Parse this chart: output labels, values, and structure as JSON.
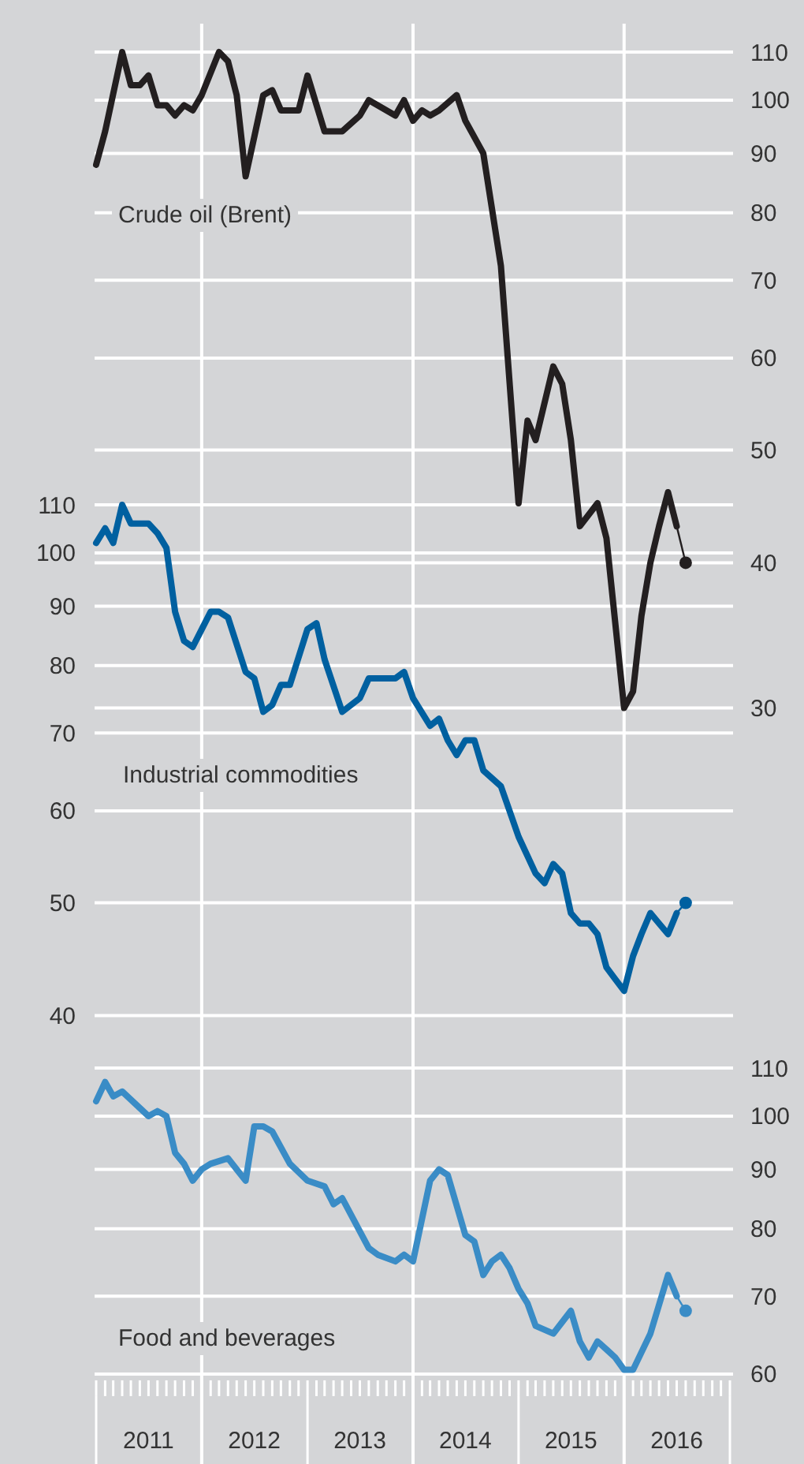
{
  "chart_data": [
    {
      "type": "line",
      "log": true,
      "grid": "y",
      "tick_labels": "y",
      "xlim": [
        "2011-01",
        "2017-01"
      ],
      "ylim": [
        30,
        110
      ],
      "yticks": [
        30,
        40,
        50,
        60,
        70,
        80,
        90,
        100,
        110
      ],
      "ref_lines": [
        {
          "axis": "x",
          "value": "2012-01",
          "color": "#ffffff"
        },
        {
          "axis": "x",
          "value": "2014-01",
          "color": "#ffffff"
        },
        {
          "axis": "x",
          "value": "2016-01",
          "color": "#ffffff"
        }
      ],
      "series": [
        {
          "type": "line",
          "name": "Crude oil (Brent)",
          "color": "#231f20",
          "x": [
            "2011-01",
            "2011-02",
            "2011-04",
            "2011-05",
            "2011-06",
            "2011-07",
            "2011-08",
            "2011-09",
            "2011-10",
            "2011-11",
            "2011-12",
            "2012-01",
            "2012-03",
            "2012-04",
            "2012-05",
            "2012-06",
            "2012-07",
            "2012-08",
            "2012-09",
            "2012-10",
            "2012-12",
            "2013-01",
            "2013-03",
            "2013-05",
            "2013-07",
            "2013-08",
            "2013-11",
            "2013-12",
            "2014-01",
            "2014-02",
            "2014-03",
            "2014-04",
            "2014-06",
            "2014-07",
            "2014-09",
            "2014-11",
            "2015-01",
            "2015-02",
            "2015-03",
            "2015-05",
            "2015-06",
            "2015-07",
            "2015-08",
            "2015-10",
            "2015-11",
            "2016-01",
            "2016-02",
            "2016-03",
            "2016-04",
            "2016-05",
            "2016-06",
            "2016-07"
          ],
          "values": [
            88,
            94,
            110,
            103,
            103,
            105,
            99,
            99,
            97,
            99,
            98,
            101,
            110,
            108,
            101,
            86,
            93,
            101,
            102,
            98,
            98,
            105,
            94,
            94,
            97,
            100,
            97,
            100,
            96,
            98,
            97,
            98,
            101,
            96,
            90,
            72,
            45,
            53,
            51,
            59,
            57,
            51,
            43,
            45,
            42,
            30,
            31,
            36,
            40,
            43,
            46,
            43
          ]
        },
        {
          "type": "scatter",
          "marker": "circle",
          "color": "#231f20",
          "x": [
            "2016-08"
          ],
          "values": [
            40
          ]
        }
      ]
    },
    {
      "type": "line",
      "log": true,
      "grid": "y",
      "tick_labels": "y",
      "xlim": [
        "2011-01",
        "2017-01"
      ],
      "ylim": [
        40,
        110
      ],
      "yticks": [
        40,
        50,
        60,
        70,
        80,
        90,
        100,
        110
      ],
      "ref_lines": [
        {
          "axis": "x",
          "value": "2012-01",
          "color": "#ffffff"
        },
        {
          "axis": "x",
          "value": "2014-01",
          "color": "#ffffff"
        },
        {
          "axis": "x",
          "value": "2016-01",
          "color": "#ffffff"
        }
      ],
      "series": [
        {
          "type": "line",
          "name": "Industrial commodities",
          "color": "#0060a0",
          "x": [
            "2011-01",
            "2011-02",
            "2011-03",
            "2011-04",
            "2011-05",
            "2011-07",
            "2011-08",
            "2011-09",
            "2011-10",
            "2011-11",
            "2011-12",
            "2012-02",
            "2012-03",
            "2012-04",
            "2012-06",
            "2012-07",
            "2012-08",
            "2012-09",
            "2012-10",
            "2012-11",
            "2013-01",
            "2013-02",
            "2013-03",
            "2013-05",
            "2013-07",
            "2013-08",
            "2013-09",
            "2013-11",
            "2013-12",
            "2014-01",
            "2014-03",
            "2014-04",
            "2014-05",
            "2014-06",
            "2014-07",
            "2014-08",
            "2014-09",
            "2014-11",
            "2015-01",
            "2015-03",
            "2015-04",
            "2015-05",
            "2015-06",
            "2015-07",
            "2015-08",
            "2015-09",
            "2015-10",
            "2015-11",
            "2015-12",
            "2016-01",
            "2016-02",
            "2016-03",
            "2016-04",
            "2016-05",
            "2016-06",
            "2016-07"
          ],
          "values": [
            102,
            105,
            102,
            110,
            106,
            106,
            104,
            101,
            89,
            84,
            83,
            89,
            89,
            88,
            79,
            78,
            73,
            74,
            77,
            77,
            86,
            87,
            81,
            73,
            75,
            78,
            78,
            78,
            79,
            75,
            71,
            72,
            69,
            67,
            69,
            69,
            65,
            63,
            57,
            53,
            52,
            54,
            53,
            49,
            48,
            48,
            47,
            44,
            43,
            42,
            45,
            47,
            49,
            48,
            47,
            49
          ]
        },
        {
          "type": "scatter",
          "marker": "circle",
          "color": "#0060a0",
          "x": [
            "2016-08"
          ],
          "values": [
            50
          ]
        }
      ]
    },
    {
      "type": "line",
      "log": true,
      "grid": "y",
      "xlim": [
        "2011-01",
        "2017-01"
      ],
      "ylim": [
        60,
        110
      ],
      "yticks": [
        60,
        70,
        80,
        90,
        100,
        110
      ],
      "xticks": [
        {
          "value": "2011-01",
          "label": null
        },
        {
          "value": "2011-02",
          "label": null
        },
        {
          "value": "2011-03",
          "label": null
        },
        {
          "value": "2011-04",
          "label": null
        },
        {
          "value": "2011-05",
          "label": null
        },
        {
          "value": "2011-06",
          "label": null
        },
        {
          "value": "2011-07",
          "label": "2011"
        },
        {
          "value": "2011-08",
          "label": null
        },
        {
          "value": "2011-09",
          "label": null
        },
        {
          "value": "2011-10",
          "label": null
        },
        {
          "value": "2011-11",
          "label": null
        },
        {
          "value": "2011-12",
          "label": null
        },
        {
          "value": "2012-01",
          "label": null
        },
        {
          "value": "2012-02",
          "label": null
        },
        {
          "value": "2012-03",
          "label": null
        },
        {
          "value": "2012-04",
          "label": null
        },
        {
          "value": "2012-05",
          "label": null
        },
        {
          "value": "2012-06",
          "label": null
        },
        {
          "value": "2012-07",
          "label": "2012"
        },
        {
          "value": "2012-08",
          "label": null
        },
        {
          "value": "2012-09",
          "label": null
        },
        {
          "value": "2012-10",
          "label": null
        },
        {
          "value": "2012-11",
          "label": null
        },
        {
          "value": "2012-12",
          "label": null
        },
        {
          "value": "2013-01",
          "label": null
        },
        {
          "value": "2013-02",
          "label": null
        },
        {
          "value": "2013-03",
          "label": null
        },
        {
          "value": "2013-04",
          "label": null
        },
        {
          "value": "2013-05",
          "label": null
        },
        {
          "value": "2013-06",
          "label": null
        },
        {
          "value": "2013-07",
          "label": "2013"
        },
        {
          "value": "2013-08",
          "label": null
        },
        {
          "value": "2013-09",
          "label": null
        },
        {
          "value": "2013-10",
          "label": null
        },
        {
          "value": "2013-11",
          "label": null
        },
        {
          "value": "2013-12",
          "label": null
        },
        {
          "value": "2014-01",
          "label": null
        },
        {
          "value": "2014-02",
          "label": null
        },
        {
          "value": "2014-03",
          "label": null
        },
        {
          "value": "2014-04",
          "label": null
        },
        {
          "value": "2014-05",
          "label": null
        },
        {
          "value": "2014-06",
          "label": null
        },
        {
          "value": "2014-07",
          "label": "2014"
        },
        {
          "value": "2014-08",
          "label": null
        },
        {
          "value": "2014-09",
          "label": null
        },
        {
          "value": "2014-10",
          "label": null
        },
        {
          "value": "2014-11",
          "label": null
        },
        {
          "value": "2014-12",
          "label": null
        },
        {
          "value": "2015-01",
          "label": null
        },
        {
          "value": "2015-02",
          "label": null
        },
        {
          "value": "2015-03",
          "label": null
        },
        {
          "value": "2015-04",
          "label": null
        },
        {
          "value": "2015-05",
          "label": null
        },
        {
          "value": "2015-06",
          "label": null
        },
        {
          "value": "2015-07",
          "label": "2015"
        },
        {
          "value": "2015-08",
          "label": null
        },
        {
          "value": "2015-09",
          "label": null
        },
        {
          "value": "2015-10",
          "label": null
        },
        {
          "value": "2015-11",
          "label": null
        },
        {
          "value": "2015-12",
          "label": null
        },
        {
          "value": "2016-01",
          "label": null
        },
        {
          "value": "2016-02",
          "label": null
        },
        {
          "value": "2016-03",
          "label": null
        },
        {
          "value": "2016-04",
          "label": null
        },
        {
          "value": "2016-05",
          "label": null
        },
        {
          "value": "2016-06",
          "label": null
        },
        {
          "value": "2016-07",
          "label": "2016"
        },
        {
          "value": "2016-08",
          "label": null
        },
        {
          "value": "2016-09",
          "label": null
        },
        {
          "value": "2016-10",
          "label": null
        },
        {
          "value": "2016-11",
          "label": null
        },
        {
          "value": "2016-12",
          "label": null
        },
        {
          "value": "2017-01",
          "label": null
        }
      ],
      "ref_lines": [
        {
          "axis": "x",
          "value": "2012-01",
          "color": "#ffffff"
        },
        {
          "axis": "x",
          "value": "2014-01",
          "color": "#ffffff"
        },
        {
          "axis": "x",
          "value": "2016-01",
          "color": "#ffffff"
        }
      ],
      "series": [
        {
          "type": "line",
          "name": "Food and beverages",
          "color": "#3a8cc6",
          "x": [
            "2011-01",
            "2011-02",
            "2011-03",
            "2011-04",
            "2011-07",
            "2011-08",
            "2011-09",
            "2011-10",
            "2011-11",
            "2011-12",
            "2012-01",
            "2012-02",
            "2012-04",
            "2012-05",
            "2012-06",
            "2012-07",
            "2012-08",
            "2012-09",
            "2012-11",
            "2013-01",
            "2013-03",
            "2013-04",
            "2013-05",
            "2013-08",
            "2013-09",
            "2013-11",
            "2013-12",
            "2014-01",
            "2014-03",
            "2014-04",
            "2014-05",
            "2014-07",
            "2014-08",
            "2014-09",
            "2014-10",
            "2014-11",
            "2014-12",
            "2015-01",
            "2015-02",
            "2015-03",
            "2015-05",
            "2015-07",
            "2015-08",
            "2015-09",
            "2015-10",
            "2015-11",
            "2015-12",
            "2016-01",
            "2016-02",
            "2016-04",
            "2016-06",
            "2016-07"
          ],
          "values": [
            103,
            107,
            104,
            105,
            100,
            101,
            100,
            93,
            91,
            88,
            90,
            91,
            92,
            90,
            88,
            98,
            98,
            97,
            91,
            88,
            87,
            84,
            85,
            77,
            76,
            75,
            76,
            75,
            88,
            90,
            89,
            79,
            78,
            73,
            75,
            76,
            74,
            71,
            69,
            66,
            65,
            68,
            64,
            62,
            64,
            63,
            62,
            60.5,
            60.5,
            65,
            73,
            70
          ]
        },
        {
          "type": "scatter",
          "marker": "circle",
          "color": "#3a8cc6",
          "x": [
            "2016-08"
          ],
          "values": [
            68
          ]
        }
      ]
    }
  ]
}
